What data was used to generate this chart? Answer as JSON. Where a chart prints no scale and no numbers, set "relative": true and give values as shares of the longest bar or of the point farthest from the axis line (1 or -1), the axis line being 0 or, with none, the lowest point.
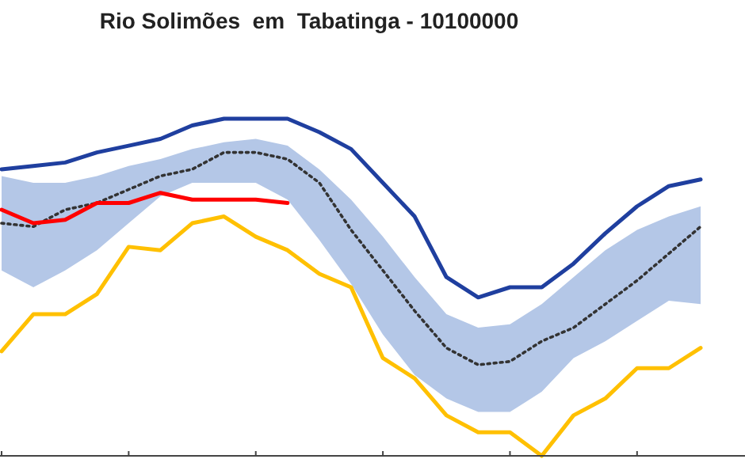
{
  "chart_data": {
    "type": "line",
    "title": "Rio Solimões  em  Tabatinga - 10100000",
    "relative": true,
    "marker": "none",
    "grid": false,
    "categories": [
      null,
      null,
      null,
      null,
      null,
      null,
      null,
      null,
      null,
      null,
      null,
      null,
      null,
      null,
      null,
      null,
      null,
      null,
      null,
      null,
      null,
      null,
      null
    ],
    "series": [
      {
        "color": "#1f3f9f",
        "line_style": "solid",
        "values": [
          0.85,
          0.86,
          0.87,
          0.9,
          0.92,
          0.94,
          0.98,
          1.0,
          1.0,
          1.0,
          0.96,
          0.91,
          0.81,
          0.71,
          0.53,
          0.47,
          0.5,
          0.5,
          0.57,
          0.66,
          0.74,
          0.8,
          0.82
        ]
      },
      {
        "color": "#333333",
        "line_style": "dotted",
        "values": [
          0.69,
          0.68,
          0.73,
          0.75,
          0.79,
          0.83,
          0.85,
          0.9,
          0.9,
          0.88,
          0.81,
          0.67,
          0.55,
          0.43,
          0.32,
          0.27,
          0.28,
          0.34,
          0.38,
          0.45,
          0.52,
          0.6,
          0.68
        ],
        "upper": [
          0.83,
          0.81,
          0.81,
          0.83,
          0.86,
          0.88,
          0.91,
          0.93,
          0.94,
          0.92,
          0.85,
          0.76,
          0.65,
          0.53,
          0.42,
          0.38,
          0.39,
          0.45,
          0.53,
          0.61,
          0.67,
          0.71,
          0.74
        ],
        "lower": [
          0.55,
          0.5,
          0.55,
          0.61,
          0.69,
          0.77,
          0.81,
          0.81,
          0.81,
          0.76,
          0.64,
          0.51,
          0.36,
          0.24,
          0.17,
          0.13,
          0.13,
          0.19,
          0.29,
          0.34,
          0.4,
          0.46,
          0.45
        ]
      },
      {
        "color": "#ff0000",
        "line_style": "solid",
        "values": [
          0.73,
          0.69,
          0.7,
          0.75,
          0.75,
          0.78,
          0.76,
          0.76,
          0.76,
          0.75,
          null,
          null,
          null,
          null,
          null,
          null,
          null,
          null,
          null,
          null,
          null,
          null,
          null
        ]
      },
      {
        "color": "#ffc000",
        "line_style": "solid",
        "values": [
          0.31,
          0.42,
          0.42,
          0.48,
          0.62,
          0.61,
          0.69,
          0.71,
          0.65,
          0.61,
          0.54,
          0.5,
          0.29,
          0.23,
          0.12,
          0.07,
          0.07,
          0.0,
          0.12,
          0.17,
          0.26,
          0.26,
          0.32
        ]
      }
    ]
  }
}
